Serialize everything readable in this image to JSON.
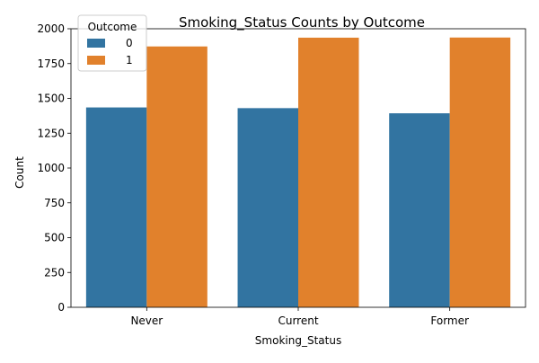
{
  "chart_data": {
    "type": "bar",
    "title": "Smoking_Status Counts by Outcome",
    "xlabel": "Smoking_Status",
    "ylabel": "Count",
    "categories": [
      "Never",
      "Current",
      "Former"
    ],
    "series": [
      {
        "name": "0",
        "values": [
          1435,
          1430,
          1393
        ],
        "color": "#3274a1"
      },
      {
        "name": "1",
        "values": [
          1873,
          1936,
          1937
        ],
        "color": "#e1812c"
      }
    ],
    "ylim": [
      0,
      2000
    ],
    "yticks": [
      0,
      250,
      500,
      750,
      1000,
      1250,
      1500,
      1750,
      2000
    ],
    "legend": {
      "title": "Outcome",
      "placement": "top-left"
    },
    "grid": false
  }
}
